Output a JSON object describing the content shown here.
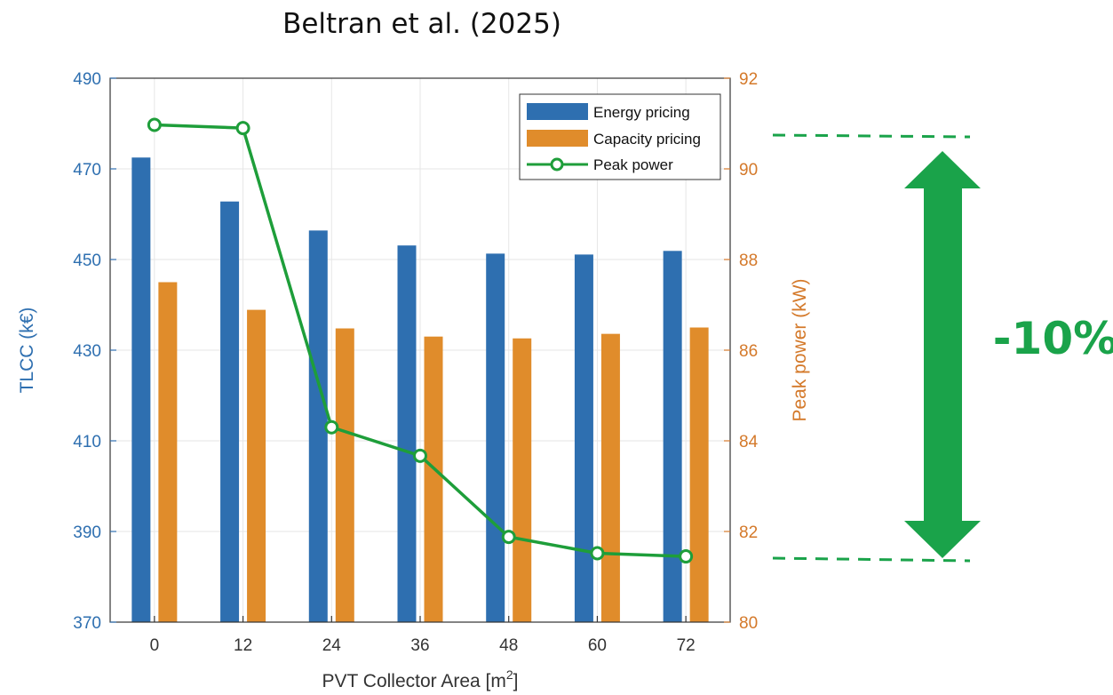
{
  "header": {
    "title": "Beltran et al. (2025)"
  },
  "annotation": {
    "text": "-10%",
    "color": "#1aa34a"
  },
  "chart_data": {
    "type": "bar",
    "title": "",
    "xlabel_main": "PVT Collector Area [m",
    "xlabel_sup": "2",
    "xlabel_end": "]",
    "ylabel_left": "TLCC (k€)",
    "ylabel_right": "Peak power (kW)",
    "categories": [
      "0",
      "12",
      "24",
      "36",
      "48",
      "60",
      "72"
    ],
    "ylim_left": [
      370,
      490
    ],
    "yticks_left": [
      370,
      390,
      410,
      430,
      450,
      470,
      490
    ],
    "ylim_right": [
      80,
      92
    ],
    "yticks_right": [
      80,
      82,
      84,
      86,
      88,
      90,
      92
    ],
    "grid": true,
    "legend_position": "top-right",
    "series": [
      {
        "name": "Energy pricing",
        "type": "bar",
        "axis": "left",
        "color": "#2e6fb0",
        "values": [
          472.5,
          462.8,
          456.4,
          453.1,
          451.3,
          451.1,
          451.9
        ]
      },
      {
        "name": "Capacity pricing",
        "type": "bar",
        "axis": "left",
        "color": "#e08c2b",
        "values": [
          445.0,
          438.9,
          434.8,
          433.0,
          432.6,
          433.6,
          435.0
        ]
      },
      {
        "name": "Peak power",
        "type": "line",
        "axis": "right",
        "color": "#1e9e3a",
        "values": [
          90.97,
          90.9,
          84.3,
          83.67,
          81.88,
          81.52,
          81.45
        ]
      }
    ],
    "colors": {
      "left_axis": "#2e6fb0",
      "right_axis": "#d4792a",
      "grid": "#e6e6e6"
    }
  }
}
